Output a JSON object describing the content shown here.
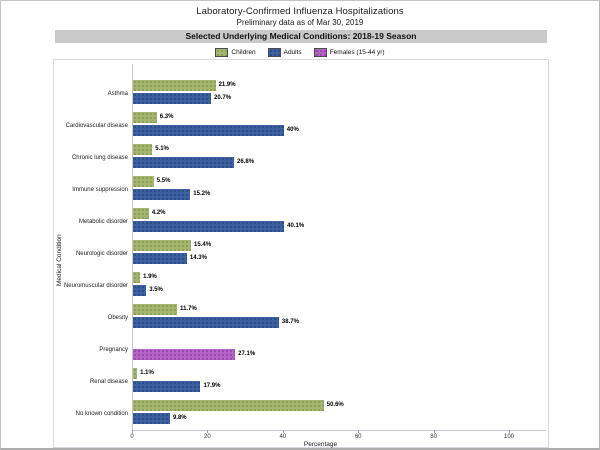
{
  "header": {
    "title": "Laboratory-Confirmed Influenza Hospitalizations",
    "subtitle": "Preliminary data as of Mar 30, 2019",
    "banner": "Selected Underlying Medical Conditions: 2018-19 Season"
  },
  "colors": {
    "banner_bg": "#c9c9c9",
    "children_bar": "#a6b56e",
    "children_dot": "#849c4e",
    "adults_bar": "#3c60a0",
    "adults_dot": "#26477e",
    "females_bar": "#b263c4",
    "females_dot": "#963fae",
    "axis": "#c6c6d2"
  },
  "chart_data": {
    "type": "bar",
    "orientation": "horizontal",
    "title": "Laboratory-Confirmed Influenza Hospitalizations",
    "subtitle": "Preliminary data as of Mar 30, 2019",
    "banner": "Selected Underlying Medical Conditions: 2018-19 Season",
    "xlabel": "Percentage",
    "ylabel": "Medical Condition",
    "xlim": [
      0,
      100
    ],
    "xticks": [
      0,
      20,
      40,
      60,
      80,
      100
    ],
    "grid": false,
    "legend_position": "top",
    "categories": [
      "Asthma",
      "Cardiovascular disease",
      "Chronic lung disease",
      "Immune suppression",
      "Metabolic disorder",
      "Neurologic disorder",
      "Neuromuscular disorder",
      "Obesity",
      "Pregnancy",
      "Renal disease",
      "No known condition"
    ],
    "series": [
      {
        "name": "Children",
        "color": "#a6b56e",
        "dot": "#849c4e",
        "values": [
          21.9,
          6.3,
          5.1,
          5.5,
          4.2,
          15.4,
          1.9,
          11.7,
          null,
          1.1,
          50.6
        ],
        "labels": [
          "21.9%",
          "6.3%",
          "5.1%",
          "5.5%",
          "4.2%",
          "15.4%",
          "1.9%",
          "11.7%",
          null,
          "1.1%",
          "50.6%"
        ]
      },
      {
        "name": "Adults",
        "color": "#3c60a0",
        "dot": "#26477e",
        "values": [
          20.7,
          40,
          26.8,
          15.2,
          40.1,
          14.3,
          3.5,
          38.7,
          null,
          17.9,
          9.8
        ],
        "labels": [
          "20.7%",
          "40%",
          "26.8%",
          "15.2%",
          "40.1%",
          "14.3%",
          "3.5%",
          "38.7%",
          null,
          "17.9%",
          "9.8%"
        ]
      },
      {
        "name": "Females (15-44 yr)",
        "color": "#b263c4",
        "dot": "#963fae",
        "values": [
          null,
          null,
          null,
          null,
          null,
          null,
          null,
          null,
          27.1,
          null,
          null
        ],
        "labels": [
          null,
          null,
          null,
          null,
          null,
          null,
          null,
          null,
          "27.1%",
          null,
          null
        ]
      }
    ]
  }
}
